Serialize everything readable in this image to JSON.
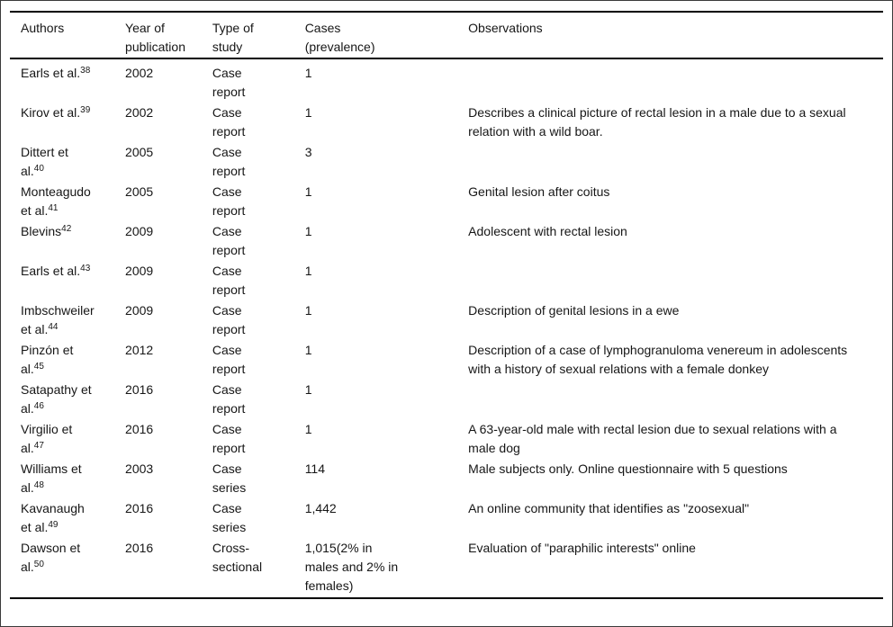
{
  "colors": {
    "background": "#ffffff",
    "text": "#161616",
    "rule": "#000000",
    "outer_border": "#3a3a3a"
  },
  "table": {
    "columns": [
      "Authors",
      "Year of publication",
      "Type of study",
      "Cases (prevalence)",
      "Observations"
    ],
    "rows": [
      {
        "author": "Earls et al.",
        "ref": "38",
        "year": "2002",
        "type": "Case report",
        "cases": "1",
        "obs": ""
      },
      {
        "author": "Kirov et al.",
        "ref": "39",
        "year": "2002",
        "type": "Case report",
        "cases": "1",
        "obs": "Describes a clinical picture of rectal lesion in a male due to a sexual relation with a wild boar."
      },
      {
        "author": "Dittert et al.",
        "ref": "40",
        "year": "2005",
        "type": "Case report",
        "cases": "3",
        "obs": ""
      },
      {
        "author": "Monteagudo et al.",
        "ref": "41",
        "year": "2005",
        "type": "Case report",
        "cases": "1",
        "obs": "Genital lesion after coitus"
      },
      {
        "author": "Blevins",
        "ref": "42",
        "year": "2009",
        "type": "Case report",
        "cases": "1",
        "obs": "Adolescent with rectal lesion"
      },
      {
        "author": "Earls et al.",
        "ref": "43",
        "year": "2009",
        "type": "Case report",
        "cases": "1",
        "obs": ""
      },
      {
        "author": "Imbschweiler et al.",
        "ref": "44",
        "year": "2009",
        "type": "Case report",
        "cases": "1",
        "obs": "Description of genital lesions in a ewe"
      },
      {
        "author": "Pinzón et al.",
        "ref": "45",
        "year": "2012",
        "type": "Case report",
        "cases": "1",
        "obs": "Description of a case of lymphogranuloma venereum in adolescents with a history of sexual relations with a female donkey"
      },
      {
        "author": "Satapathy et al.",
        "ref": "46",
        "year": "2016",
        "type": "Case report",
        "cases": "1",
        "obs": ""
      },
      {
        "author": "Virgilio et al.",
        "ref": "47",
        "year": "2016",
        "type": "Case report",
        "cases": "1",
        "obs": "A 63-year-old male with rectal lesion due to sexual relations with a male dog"
      },
      {
        "author": "Williams et al.",
        "ref": "48",
        "year": "2003",
        "type": "Case series",
        "cases": "114",
        "obs": "Male subjects only. Online questionnaire with 5 questions"
      },
      {
        "author": "Kavanaugh et al.",
        "ref": "49",
        "year": "2016",
        "type": "Case series",
        "cases": "1,442",
        "obs": "An online community that identifies as \"zoosexual\""
      },
      {
        "author": "Dawson et al.",
        "ref": "50",
        "year": "2016",
        "type": "Cross-sectional",
        "cases": "1,015(2% in males and 2% in females)",
        "obs": "Evaluation of \"paraphilic interests\" online"
      }
    ]
  }
}
